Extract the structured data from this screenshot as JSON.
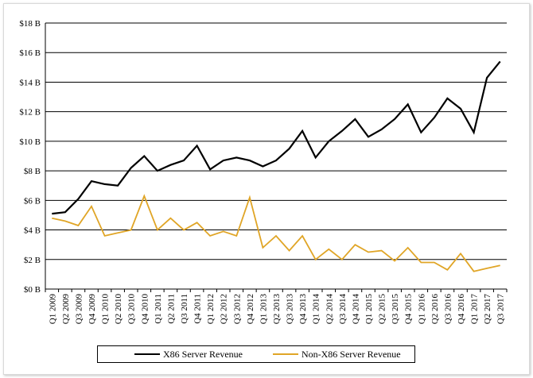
{
  "chart_data": {
    "type": "line",
    "title": "",
    "xlabel": "",
    "ylabel": "",
    "ylim": [
      0,
      18
    ],
    "y_ticks": [
      "$0 B",
      "$2 B",
      "$4 B",
      "$6 B",
      "$8 B",
      "$10 B",
      "$12 B",
      "$14 B",
      "$16 B",
      "$18 B"
    ],
    "grid": "horizontal",
    "legend_position": "bottom",
    "categories": [
      "Q1 2009",
      "Q2 2009",
      "Q3 2009",
      "Q4 2009",
      "Q1 2010",
      "Q2 2010",
      "Q3 2010",
      "Q4 2010",
      "Q1 2011",
      "Q2 2011",
      "Q3 2011",
      "Q4 2011",
      "Q1 2012",
      "Q2 2012",
      "Q3 2012",
      "Q4 2012",
      "Q1 2013",
      "Q2 2013",
      "Q3 2013",
      "Q4 2013",
      "Q1 2014",
      "Q2 2014",
      "Q3 2014",
      "Q4 2014",
      "Q1 2015",
      "Q2 2015",
      "Q3 2015",
      "Q4 2015",
      "Q1 2016",
      "Q2 2016",
      "Q3 2016",
      "Q4 2016",
      "Q1 2017",
      "Q2 2017",
      "Q3 2017"
    ],
    "series": [
      {
        "name": "X86 Server Revenue",
        "color": "#000000",
        "values": [
          5.1,
          5.2,
          6.1,
          7.3,
          7.1,
          7.0,
          8.2,
          9.0,
          8.0,
          8.4,
          8.7,
          9.7,
          8.1,
          8.7,
          8.9,
          8.7,
          8.3,
          8.7,
          9.5,
          10.7,
          8.9,
          10.0,
          10.7,
          11.5,
          10.3,
          10.8,
          11.5,
          12.5,
          10.6,
          11.6,
          12.9,
          12.2,
          10.6,
          14.3,
          15.4
        ]
      },
      {
        "name": "Non-X86 Server Revenue",
        "color": "#e0a526",
        "values": [
          4.8,
          4.6,
          4.3,
          5.6,
          3.6,
          3.8,
          4.0,
          6.3,
          4.0,
          4.8,
          4.0,
          4.5,
          3.6,
          3.9,
          3.6,
          6.2,
          2.8,
          3.6,
          2.6,
          3.6,
          2.0,
          2.7,
          2.0,
          3.0,
          2.5,
          2.6,
          1.9,
          2.8,
          1.8,
          1.8,
          1.3,
          2.4,
          1.2,
          1.4,
          1.6
        ]
      }
    ]
  }
}
